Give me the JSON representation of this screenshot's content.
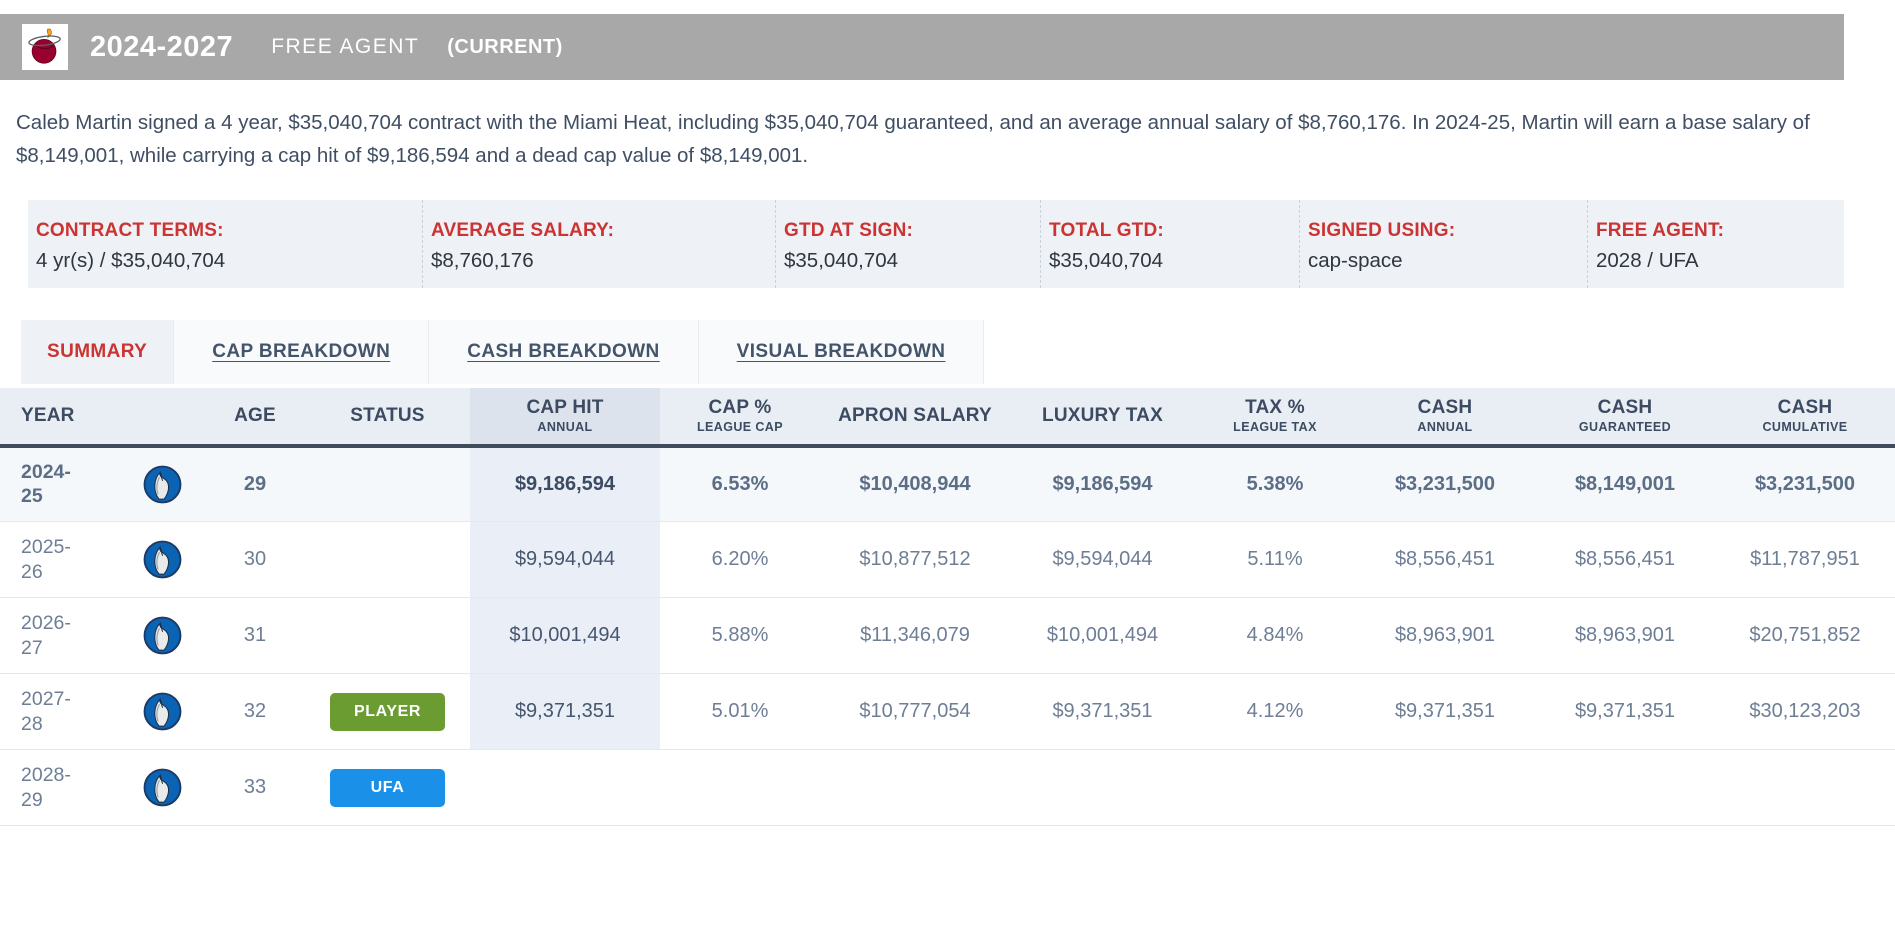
{
  "theme": {
    "accent_red": "#cb3433",
    "bar_gray": "#a8a8a8",
    "badge_player_green": "#6b9c31",
    "badge_ufa_blue": "#1b90e8"
  },
  "header": {
    "team_logo": "miami-heat-logo",
    "years": "2024-2027",
    "type_label": "FREE AGENT",
    "current_label": "(CURRENT)"
  },
  "summary_text": "Caleb Martin signed a 4 year, $35,040,704 contract with the Miami Heat, including $35,040,704 guaranteed, and an average annual salary of $8,760,176. In 2024-25, Martin will earn a base salary of $8,149,001, while carrying a cap hit of $9,186,594 and a dead cap value of $8,149,001.",
  "contract_terms": [
    {
      "label": "CONTRACT TERMS:",
      "value": "4 yr(s) / $35,040,704"
    },
    {
      "label": "AVERAGE SALARY:",
      "value": "$8,760,176"
    },
    {
      "label": "GTD AT SIGN:",
      "value": "$35,040,704"
    },
    {
      "label": "TOTAL GTD:",
      "value": "$35,040,704"
    },
    {
      "label": "SIGNED USING:",
      "value": "cap-space"
    },
    {
      "label": "FREE AGENT:",
      "value": "2028 / UFA"
    }
  ],
  "tabs": [
    {
      "label": "SUMMARY",
      "active": true
    },
    {
      "label": "CAP BREAKDOWN",
      "active": false
    },
    {
      "label": "CASH BREAKDOWN",
      "active": false
    },
    {
      "label": "VISUAL BREAKDOWN",
      "active": false
    }
  ],
  "table": {
    "row_team_logo": "dallas-mavericks-logo",
    "columns": [
      {
        "title": "YEAR",
        "sub": ""
      },
      {
        "title": "",
        "sub": ""
      },
      {
        "title": "AGE",
        "sub": ""
      },
      {
        "title": "STATUS",
        "sub": ""
      },
      {
        "title": "CAP HIT",
        "sub": "ANNUAL"
      },
      {
        "title": "CAP %",
        "sub": "LEAGUE CAP"
      },
      {
        "title": "APRON SALARY",
        "sub": ""
      },
      {
        "title": "LUXURY TAX",
        "sub": ""
      },
      {
        "title": "TAX %",
        "sub": "LEAGUE TAX"
      },
      {
        "title": "CASH",
        "sub": "ANNUAL"
      },
      {
        "title": "CASH",
        "sub": "GUARANTEED"
      },
      {
        "title": "CASH",
        "sub": "CUMULATIVE"
      }
    ],
    "rows": [
      {
        "year": "2024-25",
        "age": "29",
        "status": "",
        "cap_hit": "$9,186,594",
        "cap_pct": "6.53%",
        "apron_salary": "$10,408,944",
        "luxury_tax": "$9,186,594",
        "tax_pct": "5.38%",
        "cash_annual": "$3,231,500",
        "cash_guaranteed": "$8,149,001",
        "cash_cumulative": "$3,231,500"
      },
      {
        "year": "2025-26",
        "age": "30",
        "status": "",
        "cap_hit": "$9,594,044",
        "cap_pct": "6.20%",
        "apron_salary": "$10,877,512",
        "luxury_tax": "$9,594,044",
        "tax_pct": "5.11%",
        "cash_annual": "$8,556,451",
        "cash_guaranteed": "$8,556,451",
        "cash_cumulative": "$11,787,951"
      },
      {
        "year": "2026-27",
        "age": "31",
        "status": "",
        "cap_hit": "$10,001,494",
        "cap_pct": "5.88%",
        "apron_salary": "$11,346,079",
        "luxury_tax": "$10,001,494",
        "tax_pct": "4.84%",
        "cash_annual": "$8,963,901",
        "cash_guaranteed": "$8,963,901",
        "cash_cumulative": "$20,751,852"
      },
      {
        "year": "2027-28",
        "age": "32",
        "status": "PLAYER",
        "cap_hit": "$9,371,351",
        "cap_pct": "5.01%",
        "apron_salary": "$10,777,054",
        "luxury_tax": "$9,371,351",
        "tax_pct": "4.12%",
        "cash_annual": "$9,371,351",
        "cash_guaranteed": "$9,371,351",
        "cash_cumulative": "$30,123,203"
      },
      {
        "year": "2028-29",
        "age": "33",
        "status": "UFA",
        "cap_hit": "",
        "cap_pct": "",
        "apron_salary": "",
        "luxury_tax": "",
        "tax_pct": "",
        "cash_annual": "",
        "cash_guaranteed": "",
        "cash_cumulative": ""
      }
    ],
    "badge_colors": {
      "PLAYER": "#6b9c31",
      "UFA": "#1b90e8"
    }
  }
}
